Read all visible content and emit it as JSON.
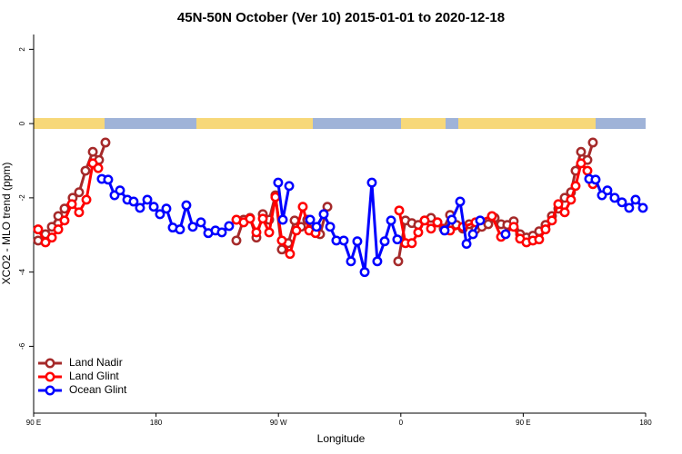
{
  "chart_data": {
    "type": "line",
    "title": "45N-50N October (Ver 10)   2015-01-01 to 2020-12-18",
    "xlabel": "Longitude",
    "ylabel": "XCO2 - MLO trend (ppm)",
    "xlim": [
      90,
      540
    ],
    "ylim": [
      -7.8,
      2.4
    ],
    "xticks": [
      {
        "value": 90,
        "label": "90 E"
      },
      {
        "value": 180,
        "label": "180"
      },
      {
        "value": 270,
        "label": "90 W"
      },
      {
        "value": 360,
        "label": "0"
      },
      {
        "value": 450,
        "label": "90 E"
      },
      {
        "value": 540,
        "label": "180"
      }
    ],
    "yticks": [
      2,
      0,
      -2,
      -4,
      -6
    ],
    "grid": false,
    "legend": "bottomleft",
    "series": [
      {
        "name": "Land Nadir",
        "color": "#a52a2a",
        "x": [
          93.3,
          98.7,
          103.4,
          108.1,
          112.7,
          118.7,
          123.4,
          128.1,
          133.5,
          138.1,
          142.8,
          null,
          239.1,
          244.4,
          249.1,
          253.8,
          258.5,
          263.2,
          267.8,
          272.5,
          277.2,
          281.9,
          286.6,
          291.2,
          295.9,
          300.6,
          306,
          null,
          358.1,
          363.4,
          368.1,
          372.8,
          377.5,
          382.2,
          386.9,
          391.5,
          396.2,
          400.9,
          405.6,
          410.3,
          414.9,
          419.6,
          424.3,
          429,
          433.7,
          438.3,
          443,
          447.7,
          452.4,
          457.1,
          461.7,
          466.4,
          471.1,
          475.8,
          480.5,
          485.1,
          488.5,
          492.5,
          497.2,
          501.2
        ],
        "values": [
          -3.15,
          -2.98,
          -2.78,
          -2.49,
          -2.29,
          -2.0,
          -1.85,
          -1.27,
          -0.76,
          -0.98,
          -0.51,
          null,
          -3.15,
          -2.59,
          -2.54,
          -3.07,
          -2.44,
          -2.59,
          -1.93,
          -3.39,
          -3.22,
          -2.61,
          -2.78,
          -2.59,
          -2.9,
          -2.98,
          -2.24,
          null,
          -3.71,
          -2.61,
          -2.68,
          -2.73,
          -2.61,
          -2.54,
          -2.66,
          -2.83,
          -2.46,
          -2.73,
          -2.83,
          -2.71,
          -2.85,
          -2.78,
          -2.71,
          -2.54,
          -2.71,
          -2.73,
          -2.63,
          -2.98,
          -3.07,
          -3.02,
          -2.9,
          -2.73,
          -2.49,
          -2.29,
          -2.0,
          -1.85,
          -1.27,
          -0.76,
          -0.98,
          -0.51
        ]
      },
      {
        "name": "Land Glint",
        "color": "#ff0000",
        "x": [
          93.3,
          98.7,
          103.4,
          108.1,
          112.7,
          118.1,
          123.4,
          128.8,
          133.5,
          137.5,
          null,
          239.1,
          244.4,
          249.1,
          253.8,
          258.5,
          263.2,
          267.8,
          272.5,
          278.5,
          283.2,
          287.9,
          292.6,
          297.3,
          null,
          358.8,
          363.4,
          368.1,
          372.8,
          377.5,
          382.2,
          386.9,
          396.2,
          405.6,
          414.9,
          427,
          433.7,
          443,
          447.7,
          452.4,
          457.1,
          461.7,
          466.4,
          471.1,
          475.8,
          480.5,
          485.1,
          488.5,
          492.5,
          497.2,
          501.2
        ],
        "values": [
          -2.85,
          -3.2,
          -3.07,
          -2.85,
          -2.61,
          -2.17,
          -2.39,
          -2.05,
          -1.07,
          -1.2,
          null,
          -2.59,
          -2.66,
          -2.56,
          -2.93,
          -2.56,
          -2.93,
          -1.98,
          -3.15,
          -3.51,
          -2.88,
          -2.24,
          -2.88,
          -2.95,
          null,
          -2.34,
          -3.22,
          -3.22,
          -2.93,
          -2.61,
          -2.83,
          -2.66,
          -2.88,
          -2.78,
          -2.66,
          -2.49,
          -3.05,
          -2.78,
          -3.1,
          -3.2,
          -3.15,
          -3.12,
          -2.85,
          -2.61,
          -2.17,
          -2.39,
          -2.05,
          -1.68,
          -1.07,
          -1.27,
          -1.63
        ]
      },
      {
        "name": "Ocean Glint",
        "color": "#0000ff",
        "x": [
          140.1,
          144.8,
          149.5,
          153.5,
          158.9,
          163.5,
          168.2,
          173.6,
          178.3,
          182.9,
          187.6,
          192.3,
          197.6,
          202.3,
          207,
          213,
          218.4,
          223.7,
          228.4,
          233.7,
          null,
          269.8,
          273.2,
          277.9,
          null,
          293.3,
          298,
          303.3,
          308,
          312.6,
          318,
          323.3,
          328,
          333.4,
          338.7,
          342.7,
          348.1,
          352.8,
          357.4,
          null,
          392.2,
          397.5,
          403.6,
          408.3,
          413,
          418.3,
          null,
          437,
          null,
          498.5,
          503.2,
          507.9,
          511.9,
          517.2,
          522.6,
          527.9,
          532.6,
          538
        ],
        "values": [
          -1.49,
          -1.51,
          -1.93,
          -1.8,
          -2.05,
          -2.1,
          -2.27,
          -2.05,
          -2.24,
          -2.44,
          -2.29,
          -2.8,
          -2.85,
          -2.2,
          -2.78,
          -2.66,
          -2.95,
          -2.88,
          -2.93,
          -2.76,
          null,
          -1.59,
          -2.59,
          -1.68,
          null,
          -2.59,
          -2.78,
          -2.44,
          -2.78,
          -3.15,
          -3.15,
          -3.71,
          -3.17,
          -4.0,
          -1.59,
          -3.71,
          -3.17,
          -2.61,
          -3.12,
          null,
          -2.88,
          -2.59,
          -2.1,
          -3.24,
          -2.98,
          -2.61,
          null,
          -2.98,
          null,
          -1.49,
          -1.51,
          -1.93,
          -1.8,
          -2.0,
          -2.12,
          -2.27,
          -2.05,
          -2.27
        ]
      }
    ]
  }
}
